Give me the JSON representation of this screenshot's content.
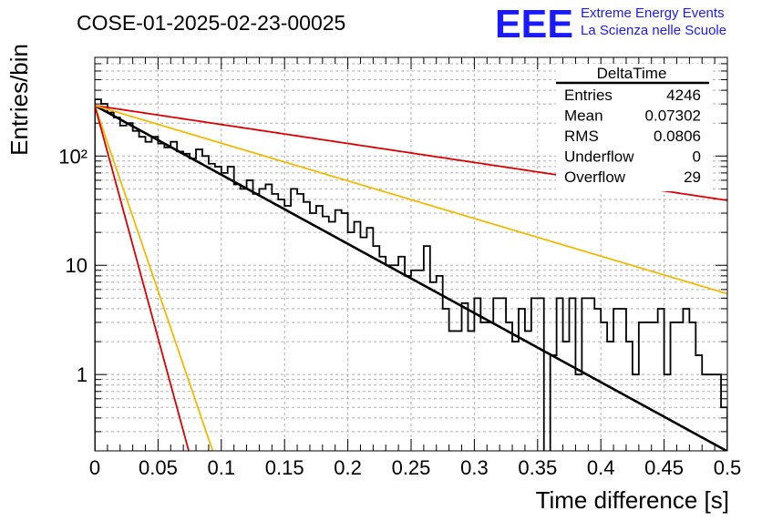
{
  "header": {
    "run_title": "COSE-01-2025-02-23-00025",
    "logo_text": "EEE",
    "logo_line1": "Extreme Energy Events",
    "logo_line2": "La Scienza nelle Scuole",
    "logo_color": "#1a1aff"
  },
  "stats": {
    "title": "DeltaTime",
    "rows": [
      {
        "label": "Entries",
        "value": "4246"
      },
      {
        "label": "Mean",
        "value": "0.07302"
      },
      {
        "label": "RMS",
        "value": "0.0806"
      },
      {
        "label": "Underflow",
        "value": "0"
      },
      {
        "label": "Overflow",
        "value": "29"
      }
    ]
  },
  "chart_data": {
    "type": "line",
    "xlabel": "Time difference [s]",
    "ylabel": "Entries/bin",
    "xlim": [
      0,
      0.5
    ],
    "ylim": [
      0.2,
      800
    ],
    "yscale": "log",
    "grid": true,
    "x_ticks": [
      "0",
      "0.05",
      "0.1",
      "0.15",
      "0.2",
      "0.25",
      "0.3",
      "0.35",
      "0.4",
      "0.45",
      "0.5"
    ],
    "y_ticks": [
      {
        "value": 1,
        "label": "1"
      },
      {
        "value": 10,
        "label": "10"
      },
      {
        "value": 100,
        "label": "10²"
      }
    ],
    "histogram": {
      "bin_width": 0.005,
      "color": "#000000",
      "values": [
        330,
        300,
        250,
        225,
        190,
        200,
        170,
        150,
        135,
        150,
        130,
        120,
        135,
        110,
        105,
        95,
        115,
        100,
        85,
        80,
        70,
        80,
        55,
        50,
        60,
        45,
        50,
        55,
        45,
        40,
        35,
        50,
        45,
        38,
        30,
        35,
        28,
        25,
        32,
        30,
        20,
        25,
        18,
        22,
        15,
        12,
        10,
        10,
        12,
        8,
        9,
        9,
        15,
        7,
        8,
        4,
        2.5,
        2.5,
        4.5,
        2.5,
        5,
        3,
        3,
        5,
        5,
        3,
        2,
        4,
        2.5,
        5,
        5,
        0,
        1.5,
        5,
        2,
        5,
        1,
        5,
        5,
        4,
        3,
        2,
        4,
        4,
        2,
        1,
        3,
        3,
        3,
        4,
        1,
        3,
        3,
        4,
        3,
        1.5,
        1,
        1,
        1,
        0.5
      ]
    },
    "series": [
      {
        "name": "",
        "color": "#000000",
        "width": 2.6,
        "type": "exponential",
        "A": 290,
        "tau": 0.0686
      },
      {
        "name": "",
        "color": "#dd0000",
        "width": 1.8,
        "type": "exponential",
        "A": 290,
        "tau": 0.25
      },
      {
        "name": "",
        "color": "#f5b800",
        "width": 1.8,
        "type": "exponential",
        "A": 290,
        "tau": 0.126
      },
      {
        "name": "",
        "color": "#f5b800",
        "width": 1.8,
        "type": "exponential",
        "A": 290,
        "tau": 0.0128
      },
      {
        "name": "",
        "color": "#dd0000",
        "width": 1.8,
        "type": "exponential",
        "A": 290,
        "tau": 0.0102
      }
    ]
  }
}
